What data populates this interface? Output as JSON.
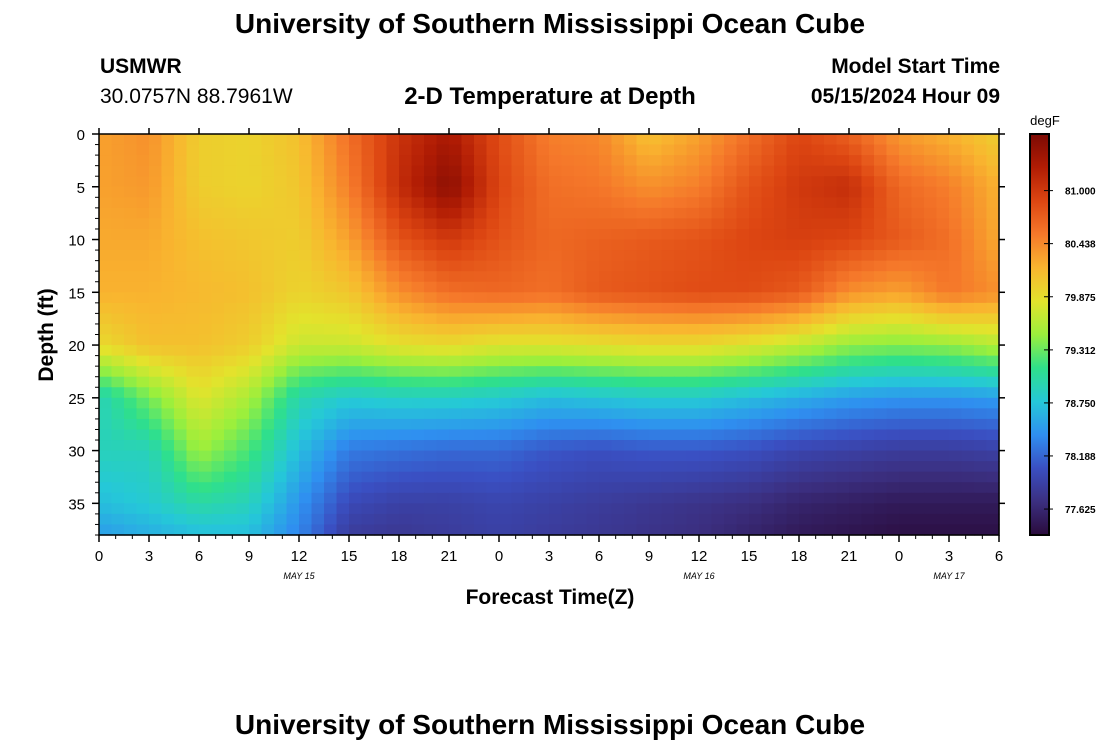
{
  "header": {
    "title": "University of Southern Mississippi Ocean Cube",
    "station": "USMWR",
    "coords": "30.0757N  88.7961W",
    "subtitle": "2-D Temperature at Depth",
    "model_start_label": "Model Start Time",
    "model_start_value": "05/15/2024 Hour 09"
  },
  "footer": {
    "title": "University of Southern Mississippi Ocean Cube"
  },
  "chart_data": {
    "type": "heatmap",
    "title": "2-D Temperature at Depth",
    "xlabel": "Forecast Time(Z)",
    "ylabel": "Depth (ft)",
    "x_hours": [
      0,
      3,
      6,
      9,
      12,
      15,
      18,
      21,
      24,
      27,
      30,
      33,
      36,
      39,
      42,
      45,
      48,
      51,
      54
    ],
    "x_tick_labels": [
      "0",
      "3",
      "6",
      "9",
      "12",
      "15",
      "18",
      "21",
      "0",
      "3",
      "6",
      "9",
      "12",
      "15",
      "18",
      "21",
      "0",
      "3",
      "6"
    ],
    "date_labels": [
      {
        "text": "MAY 15",
        "hour": 12
      },
      {
        "text": "MAY 16",
        "hour": 36
      },
      {
        "text": "MAY 17",
        "hour": 51
      }
    ],
    "y_depths": [
      0,
      5,
      10,
      15,
      20,
      25,
      30,
      35,
      38
    ],
    "y_tick_labels": [
      "0",
      "5",
      "10",
      "15",
      "20",
      "25",
      "30",
      "35"
    ],
    "ylim": [
      0,
      38
    ],
    "xlim": [
      0,
      54
    ],
    "values": [
      [
        80.3,
        80.4,
        80.0,
        79.95,
        80.1,
        80.6,
        81.05,
        81.3,
        80.85,
        80.5,
        80.45,
        80.1,
        80.3,
        80.6,
        80.9,
        80.7,
        80.35,
        80.2,
        80.0
      ],
      [
        80.3,
        80.35,
        80.0,
        79.95,
        80.05,
        80.5,
        81.1,
        81.5,
        80.9,
        80.6,
        80.55,
        80.4,
        80.5,
        80.8,
        81.0,
        81.1,
        80.65,
        80.5,
        80.2
      ],
      [
        80.25,
        80.25,
        80.1,
        80.05,
        80.0,
        80.3,
        80.8,
        81.0,
        80.8,
        80.65,
        80.7,
        80.75,
        80.8,
        80.9,
        80.95,
        80.9,
        80.75,
        80.6,
        80.25
      ],
      [
        80.2,
        80.2,
        80.15,
        80.1,
        79.95,
        80.05,
        80.4,
        80.6,
        80.65,
        80.6,
        80.75,
        80.8,
        80.85,
        80.85,
        80.75,
        80.4,
        80.3,
        80.55,
        80.4
      ],
      [
        79.9,
        80.1,
        80.1,
        80.0,
        79.7,
        79.7,
        79.85,
        79.9,
        79.8,
        79.8,
        79.85,
        79.9,
        79.9,
        79.8,
        79.65,
        79.45,
        79.4,
        79.45,
        79.6
      ],
      [
        78.9,
        79.35,
        79.8,
        79.55,
        78.95,
        78.8,
        78.85,
        78.85,
        78.8,
        78.7,
        78.75,
        78.8,
        78.8,
        78.7,
        78.6,
        78.5,
        78.45,
        78.45,
        78.5
      ],
      [
        78.9,
        78.9,
        79.5,
        79.2,
        78.7,
        78.3,
        78.25,
        78.2,
        78.2,
        78.1,
        78.05,
        78.1,
        78.1,
        78.05,
        77.95,
        77.9,
        77.85,
        77.85,
        77.9
      ],
      [
        78.7,
        78.8,
        79.0,
        78.9,
        78.45,
        78.0,
        77.9,
        77.9,
        77.95,
        77.9,
        77.85,
        77.8,
        77.75,
        77.7,
        77.6,
        77.55,
        77.5,
        77.5,
        77.5
      ],
      [
        78.5,
        78.6,
        78.7,
        78.7,
        78.35,
        77.85,
        77.8,
        77.85,
        77.9,
        77.85,
        77.8,
        77.75,
        77.7,
        77.6,
        77.5,
        77.45,
        77.4,
        77.4,
        77.4
      ]
    ],
    "colorbar": {
      "unit": "degF",
      "ticks": [
        81.0,
        80.438,
        79.875,
        79.312,
        78.75,
        78.188,
        77.625
      ],
      "tick_labels": [
        "81.000",
        "80.438",
        "79.875",
        "79.312",
        "78.750",
        "78.188",
        "77.625"
      ],
      "range": [
        77.35,
        81.6
      ],
      "stops": [
        "#2a0b3c",
        "#3b2f80",
        "#3a4fc2",
        "#2f8ff0",
        "#25c8d8",
        "#2fe08a",
        "#9bef3c",
        "#e3e32c",
        "#f9b52f",
        "#f5782a",
        "#dd4612",
        "#b11c04",
        "#7c0a04"
      ]
    }
  }
}
